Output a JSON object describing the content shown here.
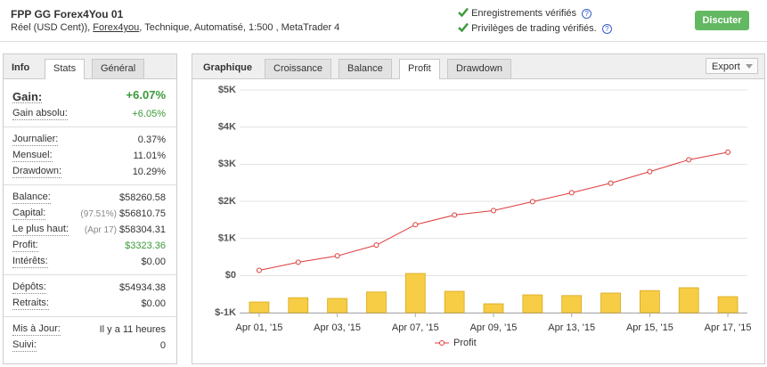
{
  "header": {
    "title": "FPP GG Forex4You 01",
    "subtitle_start": "Réel (USD Cent)), ",
    "broker": "Forex4you",
    "subtitle_end": ", Technique, Automatisé, 1:500 , MetaTrader 4",
    "verified": [
      {
        "text": "Enregistrements vérifiés",
        "help": "?"
      },
      {
        "text": "Privilèges de trading vérifiés.",
        "help": "?"
      }
    ],
    "button": "Discuter"
  },
  "left_panel": {
    "label": "Info",
    "tabs": [
      "Stats",
      "Général"
    ],
    "active_tab": 0,
    "groups": [
      [
        {
          "label": "Gain:",
          "value": "+6.07%",
          "color": "#3a9a3a",
          "emphasis": true
        },
        {
          "label": "Gain absolu:",
          "value": "+6.05%",
          "color": "#3a9a3a"
        }
      ],
      [
        {
          "label": "Journalier:",
          "value": "0.37%"
        },
        {
          "label": "Mensuel:",
          "value": "11.01%"
        },
        {
          "label": "Drawdown:",
          "value": "10.29%"
        }
      ],
      [
        {
          "label": "Balance:",
          "value": "$58260.58"
        },
        {
          "label": "Capital:",
          "note": "(97.51%)",
          "value": "$56810.75"
        },
        {
          "label": "Le plus haut:",
          "note": "(Apr 17)",
          "value": "$58304.31"
        },
        {
          "label": "Profit:",
          "value": "$3323.36",
          "color": "#3a9a3a"
        },
        {
          "label": "Intérêts:",
          "value": "$0.00"
        }
      ],
      [
        {
          "label": "Dépôts:",
          "value": "$54934.38"
        },
        {
          "label": "Retraits:",
          "value": "$0.00"
        }
      ],
      [
        {
          "label": "Mis à Jour:",
          "value": "Il y a 11 heures"
        },
        {
          "label": "Suivi:",
          "value": "0"
        }
      ]
    ]
  },
  "right_panel": {
    "label": "Graphique",
    "tabs": [
      "Croissance",
      "Balance",
      "Profit",
      "Drawdown"
    ],
    "active_tab": 2,
    "export": "Export"
  },
  "chart_data": {
    "type": "line",
    "categories": [
      "Apr 01, '15",
      null,
      "Apr 03, '15",
      null,
      "Apr 07, '15",
      null,
      "Apr 09, '15",
      null,
      "Apr 13, '15",
      null,
      "Apr 15, '15",
      null,
      "Apr 17, '15"
    ],
    "series": [
      {
        "name": "Profit",
        "type": "line",
        "color": "#dd3b3b",
        "values": [
          140,
          360,
          530,
          820,
          1370,
          1630,
          1750,
          1990,
          2230,
          2490,
          2800,
          3120,
          3323
        ]
      },
      {
        "type": "bar",
        "axis": "y2",
        "color": "#f6cd45",
        "values": [
          150,
          210,
          200,
          290,
          550,
          300,
          125,
          250,
          240,
          275,
          310,
          350,
          225
        ]
      }
    ],
    "ylim": [
      -1000,
      5000
    ],
    "yticks": [
      {
        "value": -1000,
        "label": "$-1K"
      },
      {
        "value": 0,
        "label": "$0"
      },
      {
        "value": 1000,
        "label": "$1K"
      },
      {
        "value": 2000,
        "label": "$2K"
      },
      {
        "value": 3000,
        "label": "$3K"
      },
      {
        "value": 4000,
        "label": "$4K"
      },
      {
        "value": 5000,
        "label": "$5K"
      }
    ],
    "y2lim": [
      0,
      3125
    ],
    "grid": true,
    "legend": "bottom"
  }
}
